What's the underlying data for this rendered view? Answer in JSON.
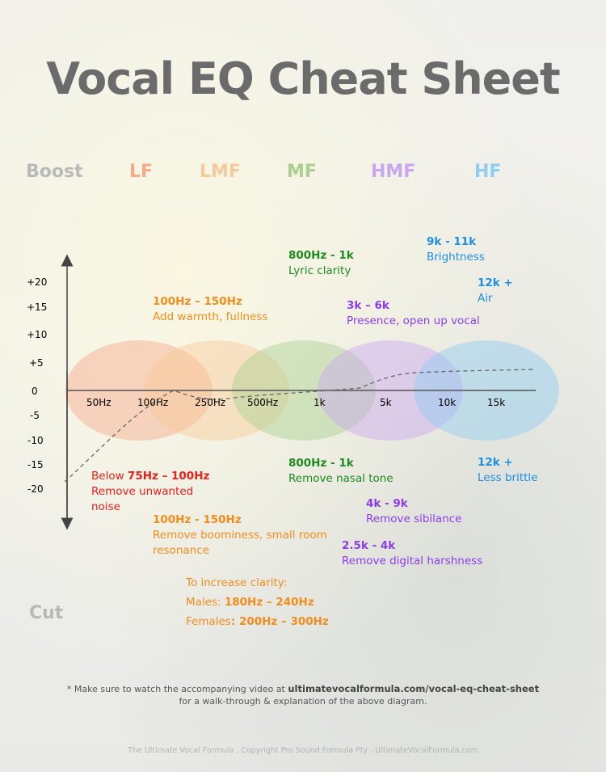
{
  "title": "Vocal EQ Cheat Sheet",
  "boost_label": "Boost",
  "cut_label": "Cut",
  "bands": [
    {
      "label": "LF",
      "color": "#f7a98a"
    },
    {
      "label": "LMF",
      "color": "#f9c99a"
    },
    {
      "label": "MF",
      "color": "#a9d08f"
    },
    {
      "label": "HMF",
      "color": "#c9a6f2"
    },
    {
      "label": "HF",
      "color": "#8fcdf2"
    }
  ],
  "y_ticks": [
    "+20",
    "+15",
    "+10",
    "+5",
    "0",
    "-5",
    "-10",
    "-15",
    "-20"
  ],
  "x_ticks": [
    "50Hz",
    "100Hz",
    "250Hz",
    "500Hz",
    "1k",
    "5k",
    "10k",
    "15k"
  ],
  "boost_notes": [
    {
      "freq": "100Hz – 150Hz",
      "desc": "Add warmth, fullness",
      "color": "#f28c1c"
    },
    {
      "freq": "800Hz - 1k",
      "desc": "Lyric clarity",
      "color": "#1f8a1f"
    },
    {
      "freq": "3k – 6k",
      "desc": "Presence, open up vocal",
      "color": "#8a3de8"
    },
    {
      "freq": "9k - 11k",
      "desc": "Brightness",
      "color": "#1e8fe0"
    },
    {
      "freq": "12k +",
      "desc": "Air",
      "color": "#1e8fe0"
    }
  ],
  "cut_notes": {
    "lf": {
      "prefix": "Below ",
      "freq": "75Hz – 100Hz",
      "line2": "Remove unwanted",
      "line3": "noise",
      "color": "#e8201a"
    },
    "lmf": {
      "freq": "100Hz - 150Hz",
      "line2": "Remove boominess, small room",
      "line3": "resonance",
      "color": "#f28c1c"
    },
    "mf": {
      "freq": "800Hz - 1k",
      "desc": "Remove nasal tone",
      "color": "#1f8a1f"
    },
    "hf": {
      "freq": "12k +",
      "desc": "Less brittle",
      "color": "#1e8fe0"
    },
    "hmf1": {
      "freq": "4k - 9k",
      "desc": "Remove sibilance",
      "color": "#8a3de8"
    },
    "hmf2": {
      "freq": "2.5k - 4k",
      "desc": "Remove digital harshness",
      "color": "#8a3de8"
    }
  },
  "clarity": {
    "heading": "To increase clarity:",
    "males_label": "Males: ",
    "males_value": "180Hz – 240Hz",
    "females_label": "Females",
    "females_value": ": 200Hz – 300Hz",
    "color": "#f28c1c"
  },
  "footnote": {
    "prefix": "* Make sure to watch the accompanying video at ",
    "url": "ultimatevocalformula.com/vocal-eq-cheat-sheet",
    "line2": "for a walk-through & explanation of the above diagram."
  },
  "copyright": "The Ultimate Vocal Formula .  Copyright Pro Sound Formula Pty . UltimateVocalFormula.com"
}
